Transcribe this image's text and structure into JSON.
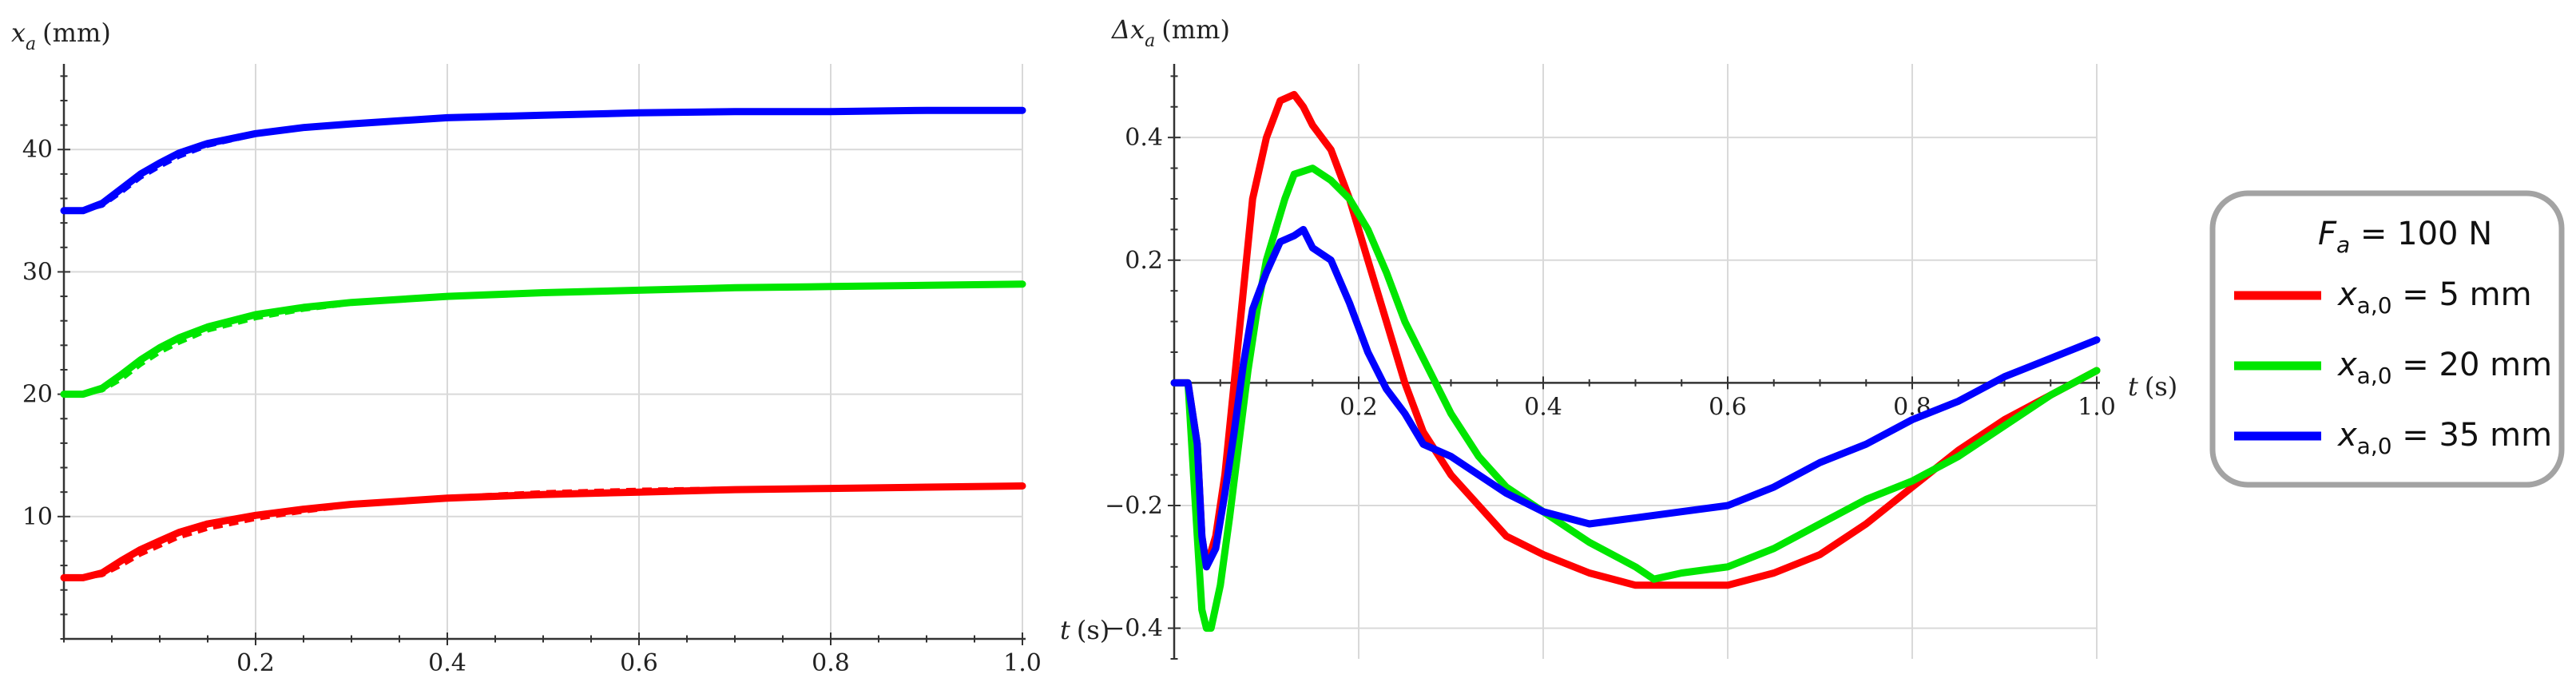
{
  "chart_data": [
    {
      "type": "line",
      "xlabel_var": "t",
      "xlabel_unit": "(s)",
      "ylabel_var": "x",
      "ylabel_sub": "a",
      "ylabel_unit": "(mm)",
      "xlim": [
        0,
        1.0
      ],
      "ylim": [
        0,
        47
      ],
      "xticks": [
        0.2,
        0.4,
        0.6,
        0.8,
        1.0
      ],
      "xtick_labels": [
        "0.2",
        "0.4",
        "0.6",
        "0.8",
        "1.0"
      ],
      "yticks": [
        10,
        20,
        30,
        40
      ],
      "ytick_labels": [
        "10",
        "20",
        "30",
        "40"
      ],
      "grid": true,
      "series": [
        {
          "name": "x_a,0 = 5 mm",
          "color": "#ff0000",
          "x": [
            0,
            0.02,
            0.04,
            0.06,
            0.08,
            0.1,
            0.12,
            0.15,
            0.2,
            0.25,
            0.3,
            0.4,
            0.5,
            0.6,
            0.7,
            0.8,
            0.9,
            1.0
          ],
          "y": [
            5,
            5,
            5.4,
            6.4,
            7.3,
            8.0,
            8.7,
            9.4,
            10.1,
            10.6,
            11.0,
            11.5,
            11.8,
            12.0,
            12.2,
            12.3,
            12.4,
            12.5
          ],
          "y_dashed": [
            5,
            5,
            5.2,
            6.0,
            6.9,
            7.6,
            8.3,
            9.0,
            9.8,
            10.4,
            10.9,
            11.6,
            12.0,
            12.2,
            12.3,
            12.4,
            12.5,
            12.5
          ]
        },
        {
          "name": "x_a,0 = 20 mm",
          "color": "#00e600",
          "x": [
            0,
            0.02,
            0.04,
            0.06,
            0.08,
            0.1,
            0.12,
            0.15,
            0.2,
            0.25,
            0.3,
            0.4,
            0.5,
            0.6,
            0.7,
            0.8,
            0.9,
            1.0
          ],
          "y": [
            20,
            20,
            20.5,
            21.6,
            22.8,
            23.8,
            24.6,
            25.5,
            26.5,
            27.1,
            27.5,
            28.0,
            28.3,
            28.5,
            28.7,
            28.8,
            28.9,
            29.0
          ],
          "y_dashed": [
            20,
            20,
            20.3,
            21.2,
            22.4,
            23.4,
            24.2,
            25.2,
            26.2,
            26.9,
            27.4,
            28.0,
            28.4,
            28.6,
            28.8,
            28.9,
            29.0,
            29.0
          ]
        },
        {
          "name": "x_a,0 = 35 mm",
          "color": "#0000ff",
          "x": [
            0,
            0.02,
            0.04,
            0.06,
            0.08,
            0.1,
            0.12,
            0.15,
            0.2,
            0.25,
            0.3,
            0.4,
            0.5,
            0.6,
            0.7,
            0.8,
            0.9,
            1.0
          ],
          "y": [
            35,
            35,
            35.6,
            36.8,
            38.0,
            38.9,
            39.7,
            40.5,
            41.3,
            41.8,
            42.1,
            42.6,
            42.8,
            43.0,
            43.1,
            43.1,
            43.2,
            43.2
          ],
          "y_dashed": [
            35,
            35,
            35.4,
            36.5,
            37.7,
            38.6,
            39.4,
            40.3,
            41.2,
            41.7,
            42.1,
            42.6,
            42.8,
            43.0,
            43.1,
            43.1,
            43.2,
            43.2
          ]
        }
      ]
    },
    {
      "type": "line",
      "xlabel_var": "t",
      "xlabel_unit": "(s)",
      "ylabel_var": "Δx",
      "ylabel_sub": "a",
      "ylabel_unit": "(mm)",
      "xlim": [
        0,
        1.0
      ],
      "ylim": [
        -0.45,
        0.52
      ],
      "xticks": [
        0.2,
        0.4,
        0.6,
        0.8,
        1.0
      ],
      "xtick_labels": [
        "0.2",
        "0.4",
        "0.6",
        "0.8",
        "1.0"
      ],
      "yticks": [
        -0.4,
        -0.2,
        0.2,
        0.4
      ],
      "ytick_labels": [
        "−0.4",
        "−0.2",
        "0.2",
        "0.4"
      ],
      "grid": true,
      "series": [
        {
          "name": "x_a,0 = 5 mm",
          "color": "#ff0000",
          "x": [
            0,
            0.015,
            0.025,
            0.03,
            0.035,
            0.045,
            0.055,
            0.065,
            0.075,
            0.085,
            0.1,
            0.115,
            0.13,
            0.14,
            0.15,
            0.17,
            0.19,
            0.21,
            0.23,
            0.25,
            0.27,
            0.3,
            0.33,
            0.36,
            0.4,
            0.45,
            0.5,
            0.55,
            0.6,
            0.65,
            0.7,
            0.75,
            0.8,
            0.85,
            0.9,
            0.95,
            1.0
          ],
          "y": [
            0,
            0,
            -0.1,
            -0.25,
            -0.3,
            -0.25,
            -0.15,
            0.0,
            0.15,
            0.3,
            0.4,
            0.46,
            0.47,
            0.45,
            0.42,
            0.38,
            0.3,
            0.2,
            0.1,
            0.0,
            -0.08,
            -0.15,
            -0.2,
            -0.25,
            -0.28,
            -0.31,
            -0.33,
            -0.33,
            -0.33,
            -0.31,
            -0.28,
            -0.23,
            -0.17,
            -0.11,
            -0.06,
            -0.02,
            0.02
          ]
        },
        {
          "name": "x_a,0 = 20 mm",
          "color": "#00e600",
          "x": [
            0,
            0.015,
            0.025,
            0.03,
            0.035,
            0.04,
            0.05,
            0.06,
            0.07,
            0.08,
            0.09,
            0.1,
            0.12,
            0.13,
            0.15,
            0.17,
            0.19,
            0.21,
            0.23,
            0.25,
            0.27,
            0.3,
            0.33,
            0.36,
            0.4,
            0.45,
            0.5,
            0.52,
            0.55,
            0.6,
            0.65,
            0.7,
            0.75,
            0.8,
            0.85,
            0.9,
            0.95,
            1.0
          ],
          "y": [
            0,
            0,
            -0.25,
            -0.37,
            -0.4,
            -0.4,
            -0.33,
            -0.22,
            -0.1,
            0.02,
            0.12,
            0.2,
            0.3,
            0.34,
            0.35,
            0.33,
            0.3,
            0.25,
            0.18,
            0.1,
            0.04,
            -0.05,
            -0.12,
            -0.17,
            -0.21,
            -0.26,
            -0.3,
            -0.32,
            -0.31,
            -0.3,
            -0.27,
            -0.23,
            -0.19,
            -0.16,
            -0.12,
            -0.07,
            -0.02,
            0.02
          ]
        },
        {
          "name": "x_a,0 = 35 mm",
          "color": "#0000ff",
          "x": [
            0,
            0.015,
            0.025,
            0.03,
            0.035,
            0.045,
            0.055,
            0.065,
            0.075,
            0.085,
            0.1,
            0.115,
            0.13,
            0.14,
            0.15,
            0.17,
            0.19,
            0.21,
            0.23,
            0.25,
            0.27,
            0.3,
            0.33,
            0.36,
            0.4,
            0.45,
            0.5,
            0.55,
            0.6,
            0.65,
            0.7,
            0.75,
            0.8,
            0.85,
            0.9,
            0.95,
            1.0
          ],
          "y": [
            0,
            0,
            -0.1,
            -0.25,
            -0.3,
            -0.27,
            -0.18,
            -0.08,
            0.03,
            0.12,
            0.18,
            0.23,
            0.24,
            0.25,
            0.22,
            0.2,
            0.13,
            0.05,
            -0.01,
            -0.05,
            -0.1,
            -0.12,
            -0.15,
            -0.18,
            -0.21,
            -0.23,
            -0.22,
            -0.21,
            -0.2,
            -0.17,
            -0.13,
            -0.1,
            -0.06,
            -0.03,
            0.01,
            0.04,
            0.07
          ]
        }
      ]
    }
  ],
  "legend": {
    "title_var": "F",
    "title_sub": "a",
    "title_rest": " = 100 N",
    "entries": [
      {
        "var": "x",
        "sub": "a,0",
        "rest": " = 5 mm",
        "color": "#ff0000"
      },
      {
        "var": "x",
        "sub": "a,0",
        "rest": " = 20 mm",
        "color": "#00e600"
      },
      {
        "var": "x",
        "sub": "a,0",
        "rest": " = 35 mm",
        "color": "#0000ff"
      }
    ]
  }
}
